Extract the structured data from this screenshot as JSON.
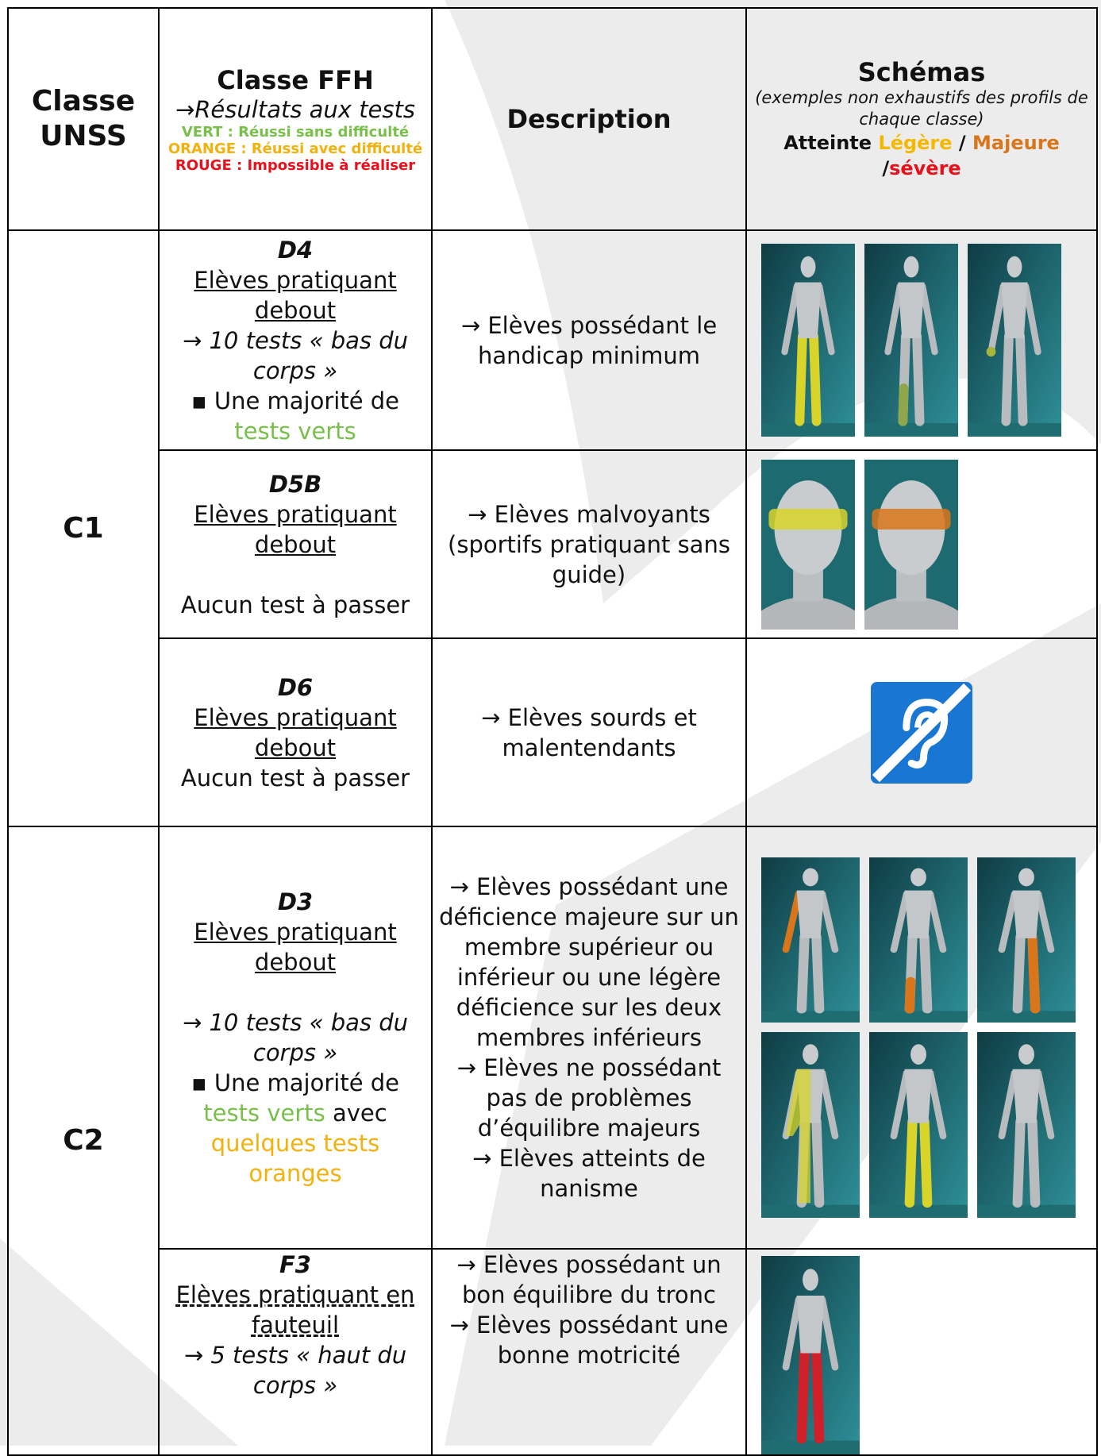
{
  "header": {
    "unss": "Classe UNSS",
    "ffh": {
      "title": "Classe FFH",
      "subtitle": "→Résultats aux tests",
      "legend": [
        "VERT : Réussi sans difficulté",
        "ORANGE : Réussi avec difficulté",
        "ROUGE : Impossible à réaliser"
      ]
    },
    "description": "Description",
    "schemas": {
      "title": "Schémas",
      "note": "(exemples non exhaustifs des profils de chaque classe)",
      "severity": [
        "Atteinte",
        "Légère",
        "/",
        "Majeure",
        "/",
        "sévère"
      ]
    }
  },
  "groups": [
    {
      "unss": "C1",
      "rows": [
        {
          "code": "D4",
          "practice": "Elèves pratiquant debout",
          "tests": "→ 10 tests « bas du corps »",
          "result": [
            "▪ Une majorité de",
            "tests verts"
          ],
          "description": [
            "→ Elèves possédant le handicap minimum"
          ]
        },
        {
          "code": "D5B",
          "practice": "Elèves pratiquant debout",
          "tests": "Aucun test à passer",
          "description": [
            "→ Elèves malvoyants (sportifs pratiquant sans guide)"
          ]
        },
        {
          "code": "D6",
          "practice": "Elèves pratiquant debout",
          "tests": "Aucun test à passer",
          "description": [
            "→ Elèves sourds et malentendants"
          ]
        }
      ]
    },
    {
      "unss": "C2",
      "rows": [
        {
          "code": "D3",
          "practice": "Elèves pratiquant debout",
          "tests": "→ 10 tests « bas du corps »",
          "result": [
            "▪ Une majorité de",
            "tests verts",
            "avec",
            "quelques tests oranges"
          ],
          "description": [
            "→ Elèves possédant une déficience majeure sur un membre supérieur ou inférieur ou une légère déficience sur les deux membres inférieurs",
            "→ Elèves ne possédant pas de problèmes d’équilibre majeurs",
            "→ Elèves atteints de nanisme"
          ]
        },
        {
          "code": "F3",
          "practice": "Elèves pratiquant en fauteuil",
          "tests": "→ 5 tests « haut du corps »",
          "description": [
            "→ Elèves possédant un bon équilibre du tronc",
            "→ Elèves possédant une bonne motricité"
          ]
        }
      ]
    }
  ]
}
